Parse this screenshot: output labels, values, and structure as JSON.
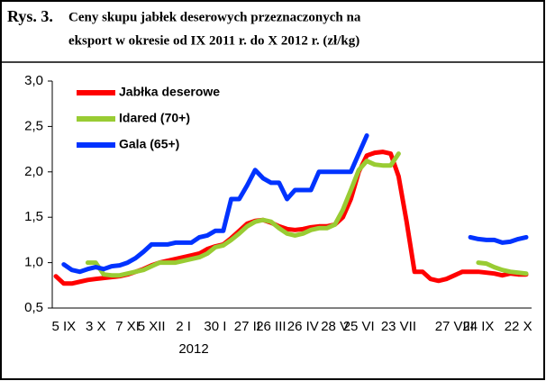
{
  "chart_data": {
    "type": "line",
    "figure_label": "Rys. 3.",
    "title_lines": [
      "Ceny skupu jabłek deserowych przeznaczonych na",
      "eksport w okresie od IX 2011 r. do X 2012 r. (zł/kg)"
    ],
    "year_label": "2012",
    "categories": [
      null,
      "5 IX",
      null,
      null,
      null,
      "3 X",
      null,
      null,
      null,
      "7 XI",
      null,
      null,
      "5 XII",
      null,
      null,
      null,
      "2 I",
      null,
      null,
      null,
      "30 I",
      null,
      null,
      null,
      "27 II",
      null,
      null,
      "26 III",
      null,
      null,
      null,
      "26 IV",
      null,
      null,
      null,
      "28 V",
      null,
      null,
      "25 VI",
      null,
      null,
      null,
      null,
      "23 VII",
      null,
      null,
      null,
      null,
      null,
      null,
      "27 VIII",
      null,
      null,
      "24 IX",
      null,
      null,
      null,
      null,
      "22 X",
      null
    ],
    "series": [
      {
        "name": "Jabłka deserowe",
        "color": "#ff0000",
        "values": [
          0.85,
          0.77,
          0.77,
          0.79,
          0.81,
          0.82,
          0.83,
          0.84,
          0.85,
          0.87,
          0.9,
          0.93,
          0.97,
          1.0,
          1.02,
          1.04,
          1.06,
          1.08,
          1.1,
          1.15,
          1.18,
          1.2,
          1.27,
          1.35,
          1.43,
          1.46,
          1.47,
          1.44,
          1.4,
          1.37,
          1.36,
          1.37,
          1.39,
          1.4,
          1.4,
          1.42,
          1.5,
          1.7,
          2.0,
          2.18,
          2.21,
          2.22,
          2.2,
          1.95,
          1.45,
          0.9,
          0.9,
          0.82,
          0.8,
          0.82,
          0.86,
          0.9,
          0.9,
          0.9,
          0.89,
          0.88,
          0.86,
          0.88,
          0.87,
          0.87
        ]
      },
      {
        "name": "Idared (70+)",
        "color": "#99cc33",
        "values": [
          null,
          null,
          null,
          null,
          1.0,
          1.0,
          0.87,
          0.86,
          0.86,
          0.88,
          0.9,
          0.92,
          0.96,
          1.0,
          1.0,
          1.0,
          1.02,
          1.04,
          1.06,
          1.1,
          1.17,
          1.19,
          1.25,
          1.32,
          1.4,
          1.45,
          1.47,
          1.45,
          1.38,
          1.32,
          1.3,
          1.32,
          1.36,
          1.38,
          1.38,
          1.42,
          1.58,
          1.8,
          2.02,
          2.12,
          2.08,
          2.07,
          2.07,
          2.2,
          null,
          null,
          null,
          null,
          null,
          null,
          null,
          null,
          null,
          1.0,
          0.99,
          0.95,
          0.92,
          0.9,
          0.89,
          0.88
        ]
      },
      {
        "name": "Gala (65+)",
        "color": "#0033ff",
        "values": [
          null,
          0.98,
          0.92,
          0.9,
          0.93,
          0.95,
          0.93,
          0.96,
          0.97,
          1.0,
          1.05,
          1.12,
          1.2,
          1.2,
          1.2,
          1.22,
          1.22,
          1.22,
          1.28,
          1.3,
          1.35,
          1.35,
          1.7,
          1.7,
          1.85,
          2.02,
          1.93,
          1.88,
          1.88,
          1.7,
          1.8,
          1.8,
          1.8,
          2.0,
          2.0,
          2.0,
          2.0,
          2.0,
          2.2,
          2.4,
          null,
          null,
          null,
          null,
          null,
          null,
          null,
          null,
          null,
          null,
          null,
          null,
          1.28,
          1.26,
          1.25,
          1.25,
          1.22,
          1.23,
          1.26,
          1.28
        ]
      }
    ],
    "ylim": [
      0.5,
      3.0
    ],
    "yticks": [
      {
        "value": 0.5,
        "label": "0,5"
      },
      {
        "value": 1.0,
        "label": "1,0"
      },
      {
        "value": 1.5,
        "label": "1,5"
      },
      {
        "value": 2.0,
        "label": "2,0"
      },
      {
        "value": 2.5,
        "label": "2,5"
      },
      {
        "value": 3.0,
        "label": "3,0"
      }
    ],
    "legend": "upper left"
  }
}
